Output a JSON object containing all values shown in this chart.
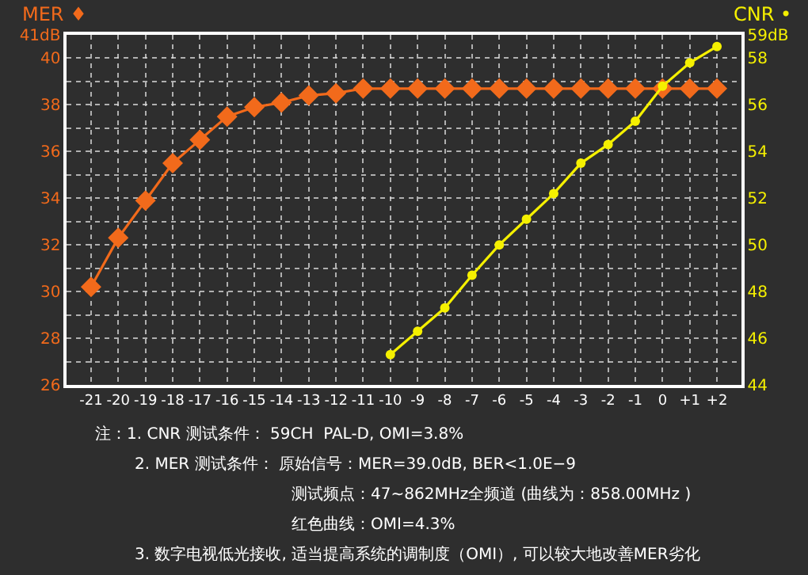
{
  "chart_data": {
    "type": "line",
    "categories": [
      "-21",
      "-20",
      "-19",
      "-18",
      "-17",
      "-16",
      "-15",
      "-14",
      "-13",
      "-12",
      "-11",
      "-10",
      "-9",
      "-8",
      "-7",
      "-6",
      "-5",
      "-4",
      "-3",
      "-2",
      "-1",
      "0",
      "+1",
      "+2"
    ],
    "ylabel": "MER ♦",
    "y2label": "CNR •",
    "series": [
      {
        "color": "#f26a1b",
        "marker": "diamond",
        "values": [
          30.2,
          32.3,
          33.9,
          35.5,
          36.5,
          37.5,
          37.9,
          38.1,
          38.4,
          38.5,
          38.7,
          38.7,
          38.7,
          38.7,
          38.7,
          38.7,
          38.7,
          38.7,
          38.7,
          38.7,
          38.7,
          38.7,
          38.7,
          38.7
        ]
      },
      {
        "color": "#f5f000",
        "marker": "circle",
        "axis": "y2",
        "values": [
          null,
          null,
          null,
          null,
          null,
          null,
          null,
          null,
          null,
          null,
          null,
          45.3,
          46.3,
          47.3,
          48.7,
          50.0,
          51.1,
          52.2,
          53.5,
          54.3,
          55.3,
          56.8,
          57.8,
          58.5
        ]
      }
    ],
    "ylim": [
      26,
      41
    ],
    "yticks": [
      26,
      {
        "value": 27,
        "label": null
      },
      28,
      {
        "value": 29,
        "label": null
      },
      30,
      {
        "value": 31,
        "label": null
      },
      32,
      {
        "value": 33,
        "label": null
      },
      34,
      {
        "value": 35,
        "label": null
      },
      36,
      {
        "value": 37,
        "label": null
      },
      38,
      {
        "value": 39,
        "label": null
      },
      40,
      {
        "value": 41,
        "label": "41dB"
      }
    ],
    "y2lim": [
      44,
      59
    ],
    "y2ticks": [
      44,
      46,
      48,
      50,
      52,
      54,
      56,
      58,
      {
        "value": 59,
        "label": "59dB"
      }
    ],
    "grid": true,
    "line_style": "solid",
    "annotations": [
      "注：1. CNR 测试条件： 59CH  PAL-D, OMI=3.8%",
      "2. MER 测试条件： 原始信号：MER=39.0dB, BER<1.0E−9",
      "测试频点：47~862MHz全频道 (曲线为：858.00MHz )",
      "红色曲线：OMI=4.3%",
      "3. 数字电视低光接收, 适当提高系统的调制度（OMI）, 可以较大地改善MER劣化"
    ]
  }
}
